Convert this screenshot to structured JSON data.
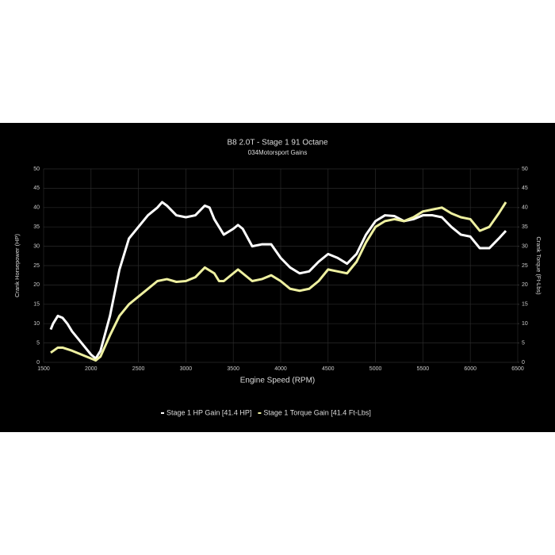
{
  "chart_data": {
    "type": "line",
    "title": "B8 2.0T - Stage 1 91 Octane",
    "subtitle": "034Motorsport Gains",
    "x_label": "Engine Speed (RPM)",
    "y_label": "Crank Horsepower (HP)",
    "y2_label": "Crank Torque (Ft-Lbs)",
    "xlim": [
      1500,
      6500
    ],
    "xticks": [
      1500,
      2000,
      2500,
      3000,
      3500,
      4000,
      4500,
      5000,
      5500,
      6000,
      6500
    ],
    "ylim": [
      0,
      50
    ],
    "yticks": [
      0,
      5,
      10,
      15,
      20,
      25,
      30,
      35,
      40,
      45,
      50
    ],
    "y2lim": [
      0,
      50
    ],
    "y2ticks": [
      0,
      5,
      10,
      15,
      20,
      25,
      30,
      35,
      40,
      45,
      50
    ],
    "grid": true,
    "series": [
      {
        "name": "Stage 1 HP Gain [41.4 HP]",
        "color": "#ffffff",
        "x": [
          1575,
          1600,
          1650,
          1700,
          1750,
          1800,
          1900,
          2000,
          2050,
          2100,
          2200,
          2300,
          2400,
          2500,
          2600,
          2700,
          2750,
          2800,
          2900,
          3000,
          3100,
          3200,
          3250,
          3300,
          3400,
          3500,
          3550,
          3600,
          3700,
          3800,
          3900,
          4000,
          4100,
          4200,
          4300,
          4400,
          4500,
          4600,
          4700,
          4800,
          4900,
          5000,
          5100,
          5200,
          5300,
          5400,
          5500,
          5600,
          5700,
          5800,
          5900,
          6000,
          6100,
          6200,
          6300,
          6375
        ],
        "values": [
          8.5,
          10,
          12,
          11.5,
          10,
          8,
          5,
          2,
          1,
          3,
          12,
          24,
          32,
          35,
          38,
          40,
          41.4,
          40.5,
          38,
          37.5,
          38,
          40.5,
          40,
          37,
          33,
          34.5,
          35.5,
          34.5,
          30,
          30.5,
          30.5,
          27,
          24.5,
          23,
          23.5,
          26,
          28,
          27,
          25.5,
          28,
          33,
          36.5,
          38,
          37.8,
          36.5,
          37,
          38,
          38,
          37.5,
          35,
          33,
          32.5,
          29.5,
          29.5,
          32,
          34
        ]
      },
      {
        "name": "Stage 1 Torque Gain [41.4 Ft-Lbs]",
        "color": "#eef0a0",
        "axis": "y2",
        "x": [
          1575,
          1650,
          1700,
          1800,
          1900,
          2000,
          2050,
          2100,
          2200,
          2300,
          2400,
          2500,
          2600,
          2700,
          2800,
          2900,
          3000,
          3100,
          3200,
          3300,
          3350,
          3400,
          3500,
          3550,
          3600,
          3700,
          3800,
          3900,
          4000,
          4100,
          4200,
          4300,
          4400,
          4500,
          4600,
          4700,
          4800,
          4900,
          5000,
          5100,
          5200,
          5300,
          5400,
          5500,
          5600,
          5700,
          5800,
          5900,
          6000,
          6100,
          6200,
          6300,
          6375
        ],
        "values": [
          2.5,
          3.8,
          3.8,
          3,
          2,
          1,
          0.5,
          1.5,
          7,
          12,
          15,
          17,
          19,
          21,
          21.5,
          20.8,
          21,
          22,
          24.5,
          23,
          21,
          21,
          23,
          24,
          23,
          21,
          21.5,
          22.5,
          21,
          19,
          18.5,
          19,
          21,
          24,
          23.5,
          23,
          26,
          31,
          35,
          36.5,
          37,
          36.5,
          37.5,
          39,
          39.5,
          40,
          38.5,
          37.5,
          37,
          34,
          35,
          38.5,
          41.4
        ]
      }
    ]
  }
}
